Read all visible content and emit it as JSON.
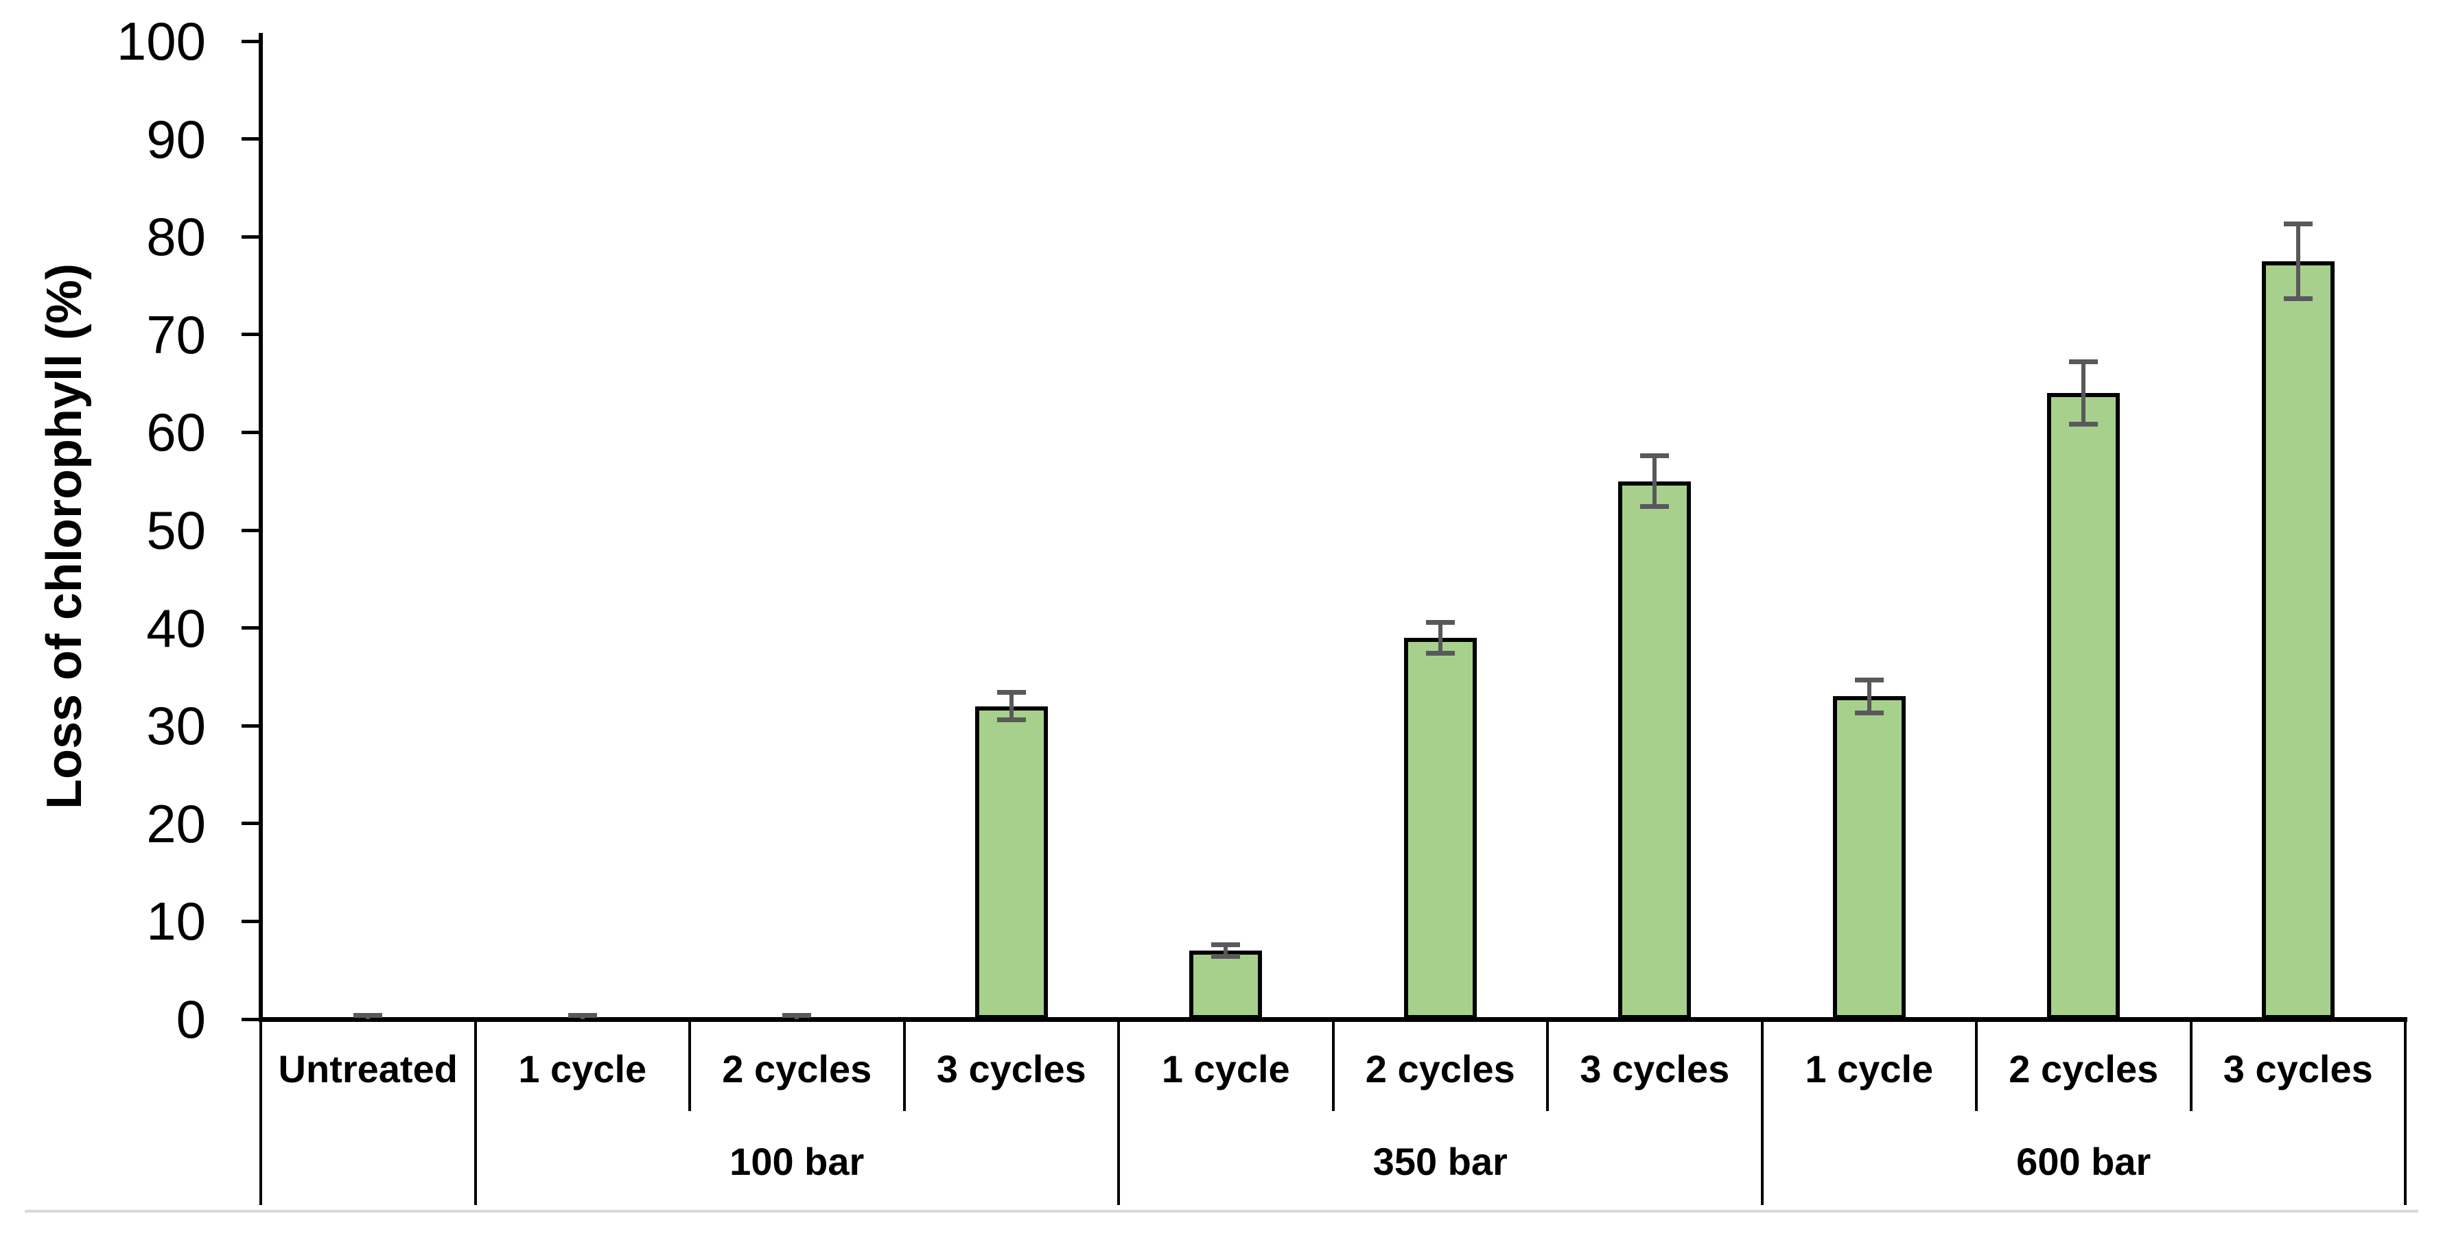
{
  "chart_data": {
    "type": "bar",
    "title": "",
    "xlabel": "",
    "ylabel": "Loss of chlorophyll (%)",
    "ylim": [
      0,
      100
    ],
    "yticks": [
      0,
      10,
      20,
      30,
      40,
      50,
      60,
      70,
      80,
      90,
      100
    ],
    "grid": false,
    "legend_position": "none",
    "categories": [
      "Untreated",
      "1 cycle",
      "2 cycles",
      "3 cycles",
      "1 cycle",
      "2 cycles",
      "3 cycles",
      "1 cycle",
      "2 cycles",
      "3 cycles"
    ],
    "group_labels": [
      {
        "label": "",
        "span": 1
      },
      {
        "label": "100 bar",
        "span": 3
      },
      {
        "label": "350 bar",
        "span": 3
      },
      {
        "label": "600 bar",
        "span": 3
      }
    ],
    "series": [
      {
        "name": "Loss of chlorophyll (%)",
        "values": [
          0,
          0,
          0,
          32,
          7,
          39,
          55,
          33,
          64,
          77.5
        ],
        "errors": [
          0.4,
          0.4,
          0.4,
          1.4,
          0.6,
          1.6,
          2.6,
          1.7,
          3.2,
          3.8
        ]
      }
    ],
    "colors": {
      "bar_fill": "#A8D08D",
      "bar_border": "#000000",
      "error_bar": "#595959",
      "axis": "#000000",
      "window_edge_line": "#D9D9D9"
    }
  }
}
